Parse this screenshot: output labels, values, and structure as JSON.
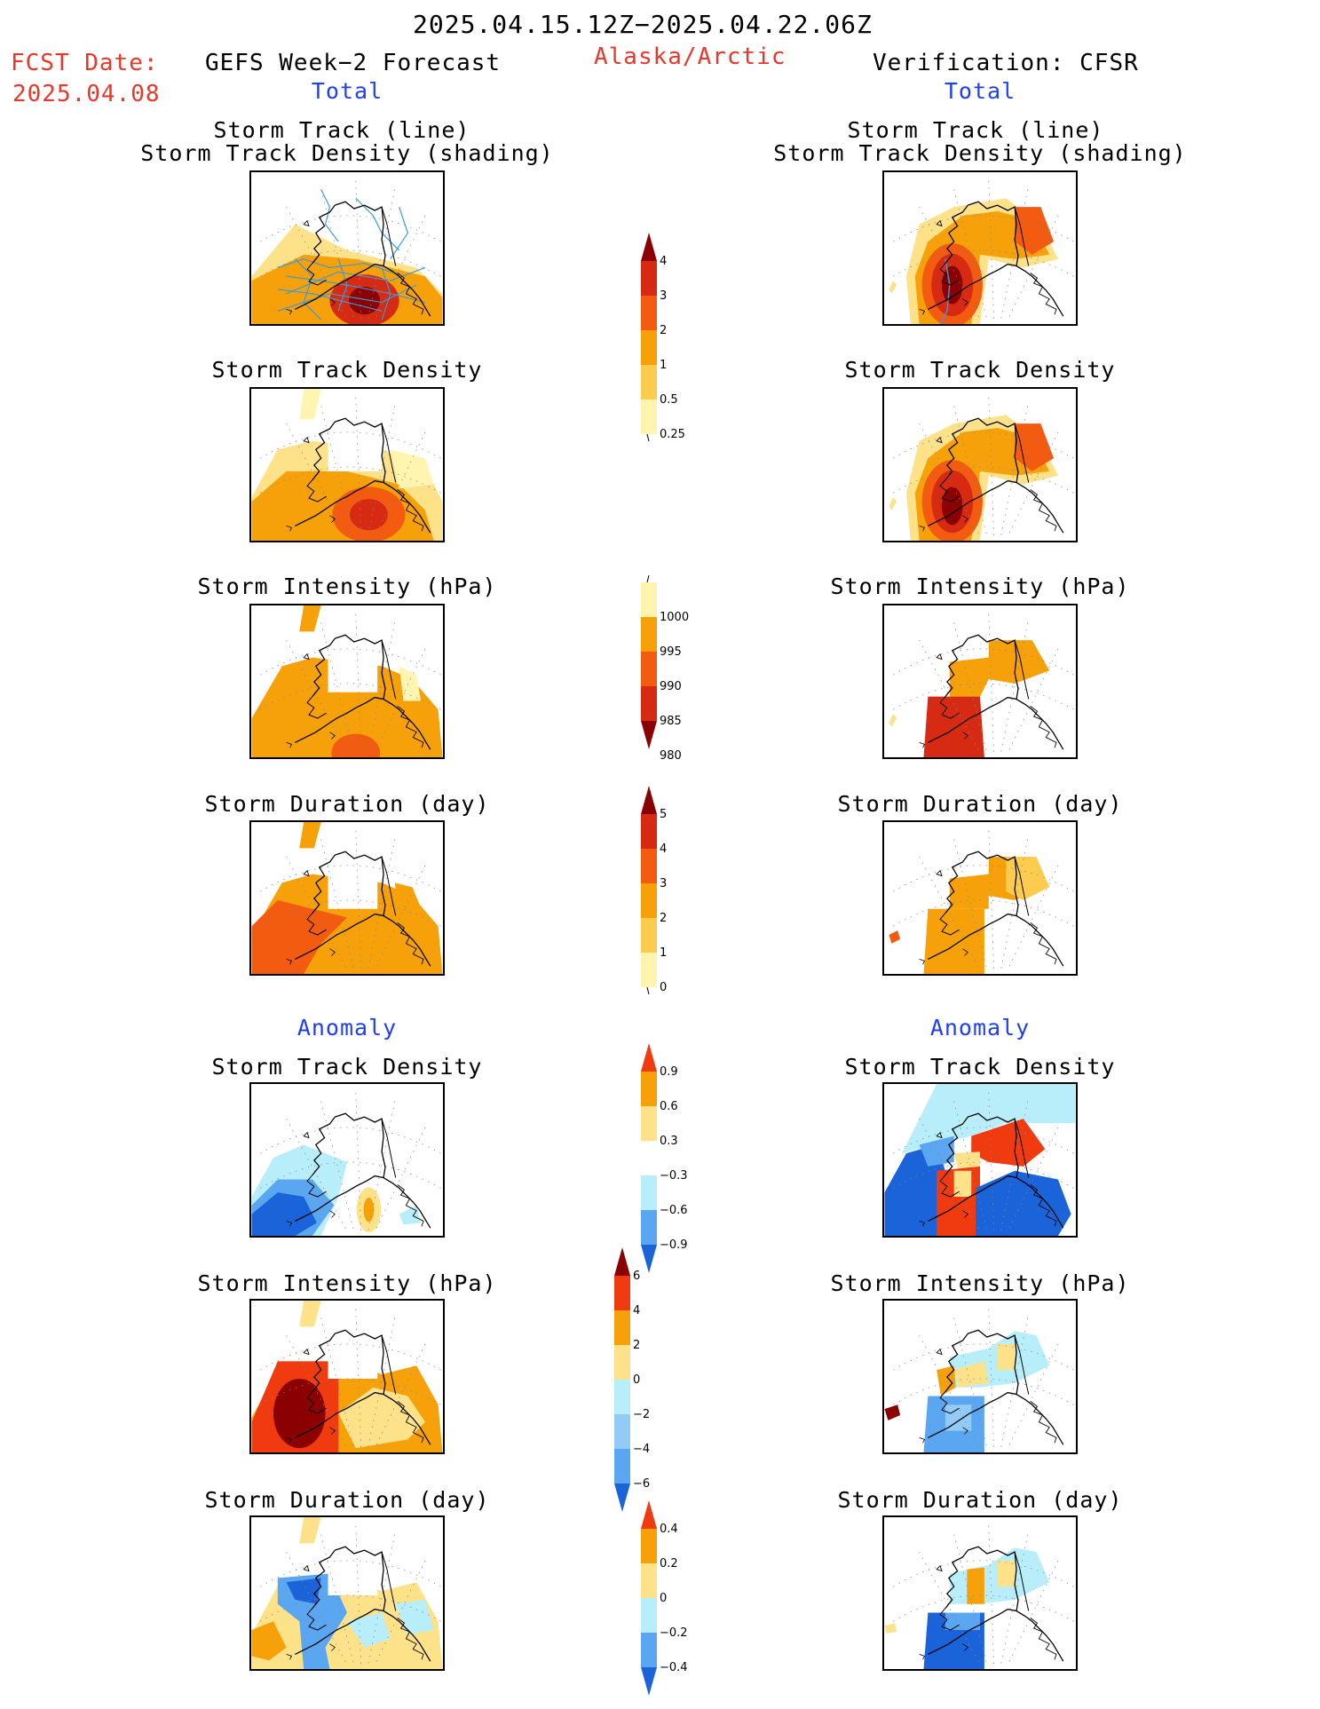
{
  "header": {
    "period": "2025.04.15.12Z−2025.04.22.06Z",
    "fcst_label": "FCST Date:",
    "fcst_date": "2025.04.08",
    "forecast_title": "GEFS Week−2 Forecast",
    "region": "Alaska/Arctic",
    "verification_title": "Verification: CFSR",
    "total_label": "Total",
    "anomaly_label": "Anomaly"
  },
  "panel_titles": {
    "track_line_1": "Storm Track (line)",
    "track_line_2": "Storm Track Density (shading)",
    "density": "Storm Track Density",
    "intensity": "Storm Intensity (hPa)",
    "duration": "Storm Duration (day)"
  },
  "colors": {
    "title_red": "#e8382b",
    "title_blue": "#1f3ff0",
    "track_line": "#3a9ad9"
  },
  "colorbars": [
    {
      "id": "density_total",
      "ticks": [
        "4",
        "3",
        "2",
        "1",
        "0.5",
        "0.25"
      ],
      "colors": [
        "#8b0000",
        "#d62a12",
        "#f25b10",
        "#f7a10a",
        "#fdcc4e",
        "#fff5b0"
      ],
      "ends": "top-arrow"
    },
    {
      "id": "intensity_total",
      "ticks": [
        "1000",
        "995",
        "990",
        "985",
        "980"
      ],
      "colors": [
        "#fff5b0",
        "#f7a10a",
        "#f25b10",
        "#d62a12",
        "#8b0000"
      ],
      "ends": "bottom-arrow"
    },
    {
      "id": "duration_total",
      "ticks": [
        "5",
        "4",
        "3",
        "2",
        "1",
        "0"
      ],
      "colors": [
        "#8b0000",
        "#d62a12",
        "#f25b10",
        "#f7a10a",
        "#fdcc4e",
        "#fff5b0"
      ],
      "ends": "top-arrow"
    },
    {
      "id": "density_anom",
      "ticks": [
        "0.9",
        "0.6",
        "0.3",
        "−0.3",
        "−0.6",
        "−0.9"
      ],
      "colors": [
        "#f03a10",
        "#f7a10a",
        "#fde28a",
        "#ffffff",
        "#b8eefa",
        "#5aa6f0",
        "#1a63d8"
      ],
      "ends": "both-arrow"
    },
    {
      "id": "intensity_anom",
      "ticks": [
        "6",
        "4",
        "2",
        "0",
        "−2",
        "−4",
        "−6"
      ],
      "colors": [
        "#8b0000",
        "#f03a10",
        "#f7a10a",
        "#fde28a",
        "#b8eefa",
        "#92ccf6",
        "#5aa6f0",
        "#1a63d8"
      ],
      "ends": "both-arrow"
    },
    {
      "id": "duration_anom",
      "ticks": [
        "0.4",
        "0.2",
        "0",
        "−0.2",
        "−0.4"
      ],
      "colors": [
        "#f03a10",
        "#f7a10a",
        "#fde28a",
        "#b8eefa",
        "#5aa6f0",
        "#1a63d8"
      ],
      "ends": "both-arrow"
    }
  ]
}
